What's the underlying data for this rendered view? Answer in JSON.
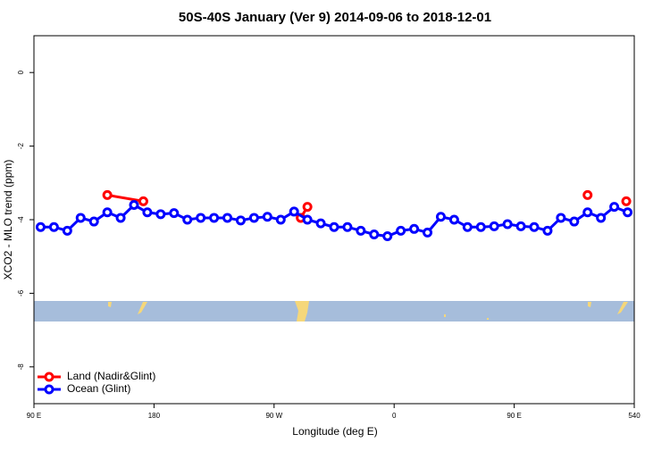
{
  "chart_data": {
    "type": "line",
    "title": "50S-40S January (Ver 9)   2014-09-06 to 2018-12-01",
    "x_label": "Longitude (deg E)",
    "y_label": "XCO2 - MLO trend (ppm)",
    "xlim": [
      90,
      540
    ],
    "ylim": [
      -9,
      1
    ],
    "xticks": [
      {
        "value": 90,
        "label": "90 E"
      },
      180,
      {
        "value": 270,
        "label": "90 W"
      },
      {
        "value": 360,
        "label": "0"
      },
      {
        "value": 450,
        "label": "90 E"
      },
      540
    ],
    "yticks": [
      0,
      -2,
      -4,
      -6,
      -8
    ],
    "legend": "bottom-left",
    "series": [
      {
        "name": "Land (Nadir&Glint)",
        "color": "#ff0000",
        "x": [
          145,
          172,
          null,
          290,
          295,
          null,
          505,
          null,
          534
        ],
        "values": [
          -3.33,
          -3.5,
          null,
          -3.95,
          -3.65,
          null,
          -3.33,
          null,
          -3.5
        ]
      },
      {
        "name": "Ocean (Glint)",
        "color": "#0000ff",
        "x": [
          95,
          105,
          115,
          125,
          135,
          145,
          155,
          165,
          175,
          185,
          195,
          205,
          215,
          225,
          235,
          245,
          255,
          265,
          275,
          285,
          295,
          305,
          315,
          325,
          335,
          345,
          355,
          365,
          375,
          385,
          395,
          405,
          415,
          425,
          435,
          445,
          455,
          465,
          475,
          485,
          495,
          505,
          515,
          525,
          535
        ],
        "values": [
          -4.2,
          -4.2,
          -4.3,
          -3.95,
          -4.05,
          -3.8,
          -3.95,
          -3.6,
          -3.8,
          -3.85,
          -3.82,
          -4.0,
          -3.95,
          -3.95,
          -3.95,
          -4.02,
          -3.95,
          -3.92,
          -4.0,
          -3.78,
          -4.0,
          -4.1,
          -4.2,
          -4.2,
          -4.3,
          -4.4,
          -4.45,
          -4.3,
          -4.25,
          -4.35,
          -3.92,
          -4.0,
          -4.2,
          -4.2,
          -4.18,
          -4.12,
          -4.18,
          -4.2,
          -4.3,
          -3.95,
          -4.05,
          -3.8,
          -3.95,
          -3.65,
          -3.8
        ]
      }
    ]
  }
}
